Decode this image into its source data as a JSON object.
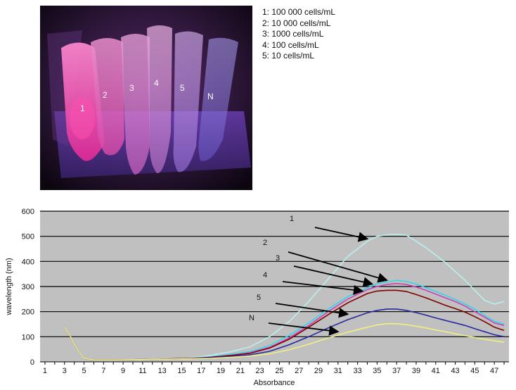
{
  "photo": {
    "tube_labels": [
      "1",
      "2",
      "3",
      "4",
      "5",
      "N"
    ]
  },
  "legend": {
    "items": [
      "1: 100 000 cells/mL",
      "2: 10 000 cells/mL",
      "3: 1000 cells/mL",
      "4: 100 cells/mL",
      "5: 10 cells/mL"
    ]
  },
  "chart_data": {
    "type": "line",
    "title": "",
    "xlabel": "Absorbance",
    "ylabel": "wavelength (nm)",
    "ylim": [
      0,
      600
    ],
    "yticks": [
      0,
      100,
      200,
      300,
      400,
      500,
      600
    ],
    "xlim": [
      1,
      48
    ],
    "xticks": [
      1,
      3,
      5,
      7,
      9,
      11,
      13,
      15,
      17,
      19,
      21,
      23,
      25,
      27,
      29,
      31,
      33,
      35,
      37,
      39,
      41,
      43,
      45,
      47
    ],
    "grid": "horizontal",
    "plot_background": "#c0c0c0",
    "annotations": [
      "1",
      "2",
      "3",
      "4",
      "5",
      "N"
    ],
    "series": [
      {
        "color": "#b8f0ee",
        "x": [
          3,
          3.5,
          4,
          4.5,
          5,
          6,
          8,
          10,
          12,
          14,
          16,
          18,
          20,
          22,
          24,
          26,
          28,
          30,
          32,
          34,
          35,
          36,
          37,
          38,
          39,
          40,
          41,
          42,
          43,
          44,
          45,
          46,
          47,
          48
        ],
        "y": [
          140,
          110,
          70,
          40,
          15,
          8,
          8,
          9,
          10,
          12,
          16,
          26,
          40,
          60,
          100,
          160,
          240,
          330,
          420,
          480,
          500,
          506,
          508,
          505,
          480,
          455,
          425,
          395,
          360,
          325,
          285,
          245,
          230,
          240
        ]
      },
      {
        "color": "#30d8e8",
        "x": [
          3,
          3.5,
          4,
          4.5,
          5,
          6,
          8,
          10,
          12,
          14,
          16,
          18,
          20,
          22,
          24,
          26,
          28,
          30,
          32,
          34,
          35,
          36,
          37,
          38,
          39,
          40,
          41,
          42,
          43,
          44,
          45,
          46,
          47,
          48
        ],
        "y": [
          140,
          110,
          70,
          40,
          15,
          8,
          8,
          9,
          10,
          12,
          14,
          20,
          30,
          40,
          65,
          105,
          155,
          210,
          260,
          295,
          310,
          318,
          325,
          320,
          310,
          295,
          280,
          265,
          248,
          230,
          210,
          185,
          162,
          150
        ]
      },
      {
        "color": "#d040b8",
        "x": [
          3,
          3.5,
          4,
          4.5,
          5,
          6,
          8,
          10,
          12,
          14,
          16,
          18,
          20,
          22,
          24,
          26,
          28,
          30,
          32,
          34,
          35,
          36,
          37,
          38,
          39,
          40,
          41,
          42,
          43,
          44,
          45,
          46,
          47,
          48
        ],
        "y": [
          140,
          110,
          70,
          40,
          15,
          8,
          8,
          9,
          10,
          12,
          14,
          18,
          26,
          36,
          58,
          95,
          145,
          200,
          250,
          288,
          300,
          308,
          312,
          308,
          298,
          285,
          270,
          255,
          240,
          222,
          200,
          178,
          155,
          145
        ]
      },
      {
        "color": "#800000",
        "x": [
          3,
          3.5,
          4,
          4.5,
          5,
          6,
          8,
          10,
          12,
          14,
          16,
          18,
          20,
          22,
          24,
          26,
          28,
          30,
          32,
          34,
          35,
          36,
          37,
          38,
          39,
          40,
          41,
          42,
          43,
          44,
          45,
          46,
          47,
          48
        ],
        "y": [
          140,
          110,
          70,
          40,
          15,
          8,
          8,
          9,
          10,
          12,
          14,
          18,
          25,
          34,
          55,
          90,
          138,
          188,
          235,
          272,
          282,
          285,
          285,
          280,
          268,
          255,
          240,
          225,
          212,
          198,
          180,
          160,
          138,
          125
        ]
      },
      {
        "color": "#2828a0",
        "x": [
          3,
          3.5,
          4,
          4.5,
          5,
          6,
          8,
          10,
          12,
          14,
          16,
          18,
          20,
          22,
          24,
          26,
          28,
          30,
          32,
          34,
          35,
          36,
          37,
          38,
          39,
          40,
          41,
          42,
          43,
          44,
          45,
          46,
          47,
          48
        ],
        "y": [
          140,
          110,
          70,
          40,
          15,
          8,
          8,
          9,
          10,
          11,
          13,
          16,
          21,
          28,
          42,
          68,
          100,
          135,
          168,
          195,
          205,
          210,
          210,
          205,
          196,
          186,
          175,
          165,
          155,
          145,
          132,
          120,
          108,
          100
        ]
      },
      {
        "color": "#f0f080",
        "x": [
          3,
          3.5,
          4,
          4.5,
          5,
          6,
          8,
          10,
          12,
          14,
          16,
          18,
          20,
          22,
          24,
          26,
          28,
          30,
          32,
          34,
          35,
          36,
          37,
          38,
          39,
          40,
          41,
          42,
          43,
          44,
          45,
          46,
          47,
          48
        ],
        "y": [
          140,
          110,
          70,
          40,
          15,
          8,
          8,
          9,
          10,
          11,
          12,
          14,
          18,
          23,
          32,
          48,
          70,
          95,
          118,
          138,
          147,
          152,
          152,
          148,
          142,
          135,
          127,
          120,
          112,
          104,
          97,
          90,
          84,
          78
        ]
      }
    ]
  }
}
